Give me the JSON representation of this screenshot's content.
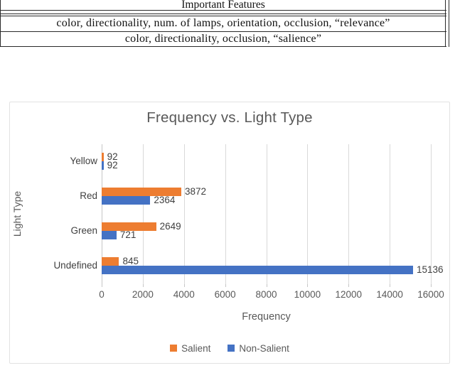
{
  "table": {
    "header": "Important Features",
    "rows": [
      "color, directionality, num. of lamps, orientation, occlusion, “relevance”",
      "color, directionality, occlusion, “salience”"
    ]
  },
  "chart_data": {
    "type": "bar",
    "orientation": "horizontal",
    "title": "Frequency vs. Light Type",
    "xlabel": "Frequency",
    "ylabel": "Light Type",
    "categories": [
      "Yellow",
      "Red",
      "Green",
      "Undefined"
    ],
    "series": [
      {
        "name": "Salient",
        "color": "#ED7D31",
        "values": [
          92,
          3872,
          2649,
          845
        ]
      },
      {
        "name": "Non-Salient",
        "color": "#4472C4",
        "values": [
          92,
          2364,
          721,
          15136
        ]
      }
    ],
    "xlim": [
      0,
      16000
    ],
    "xtick_step": 2000,
    "xtick_labels": [
      "0",
      "2000",
      "4000",
      "6000",
      "8000",
      "10000",
      "12000",
      "14000",
      "16000"
    ],
    "grid": true,
    "data_labels": true,
    "legend_position": "bottom"
  }
}
